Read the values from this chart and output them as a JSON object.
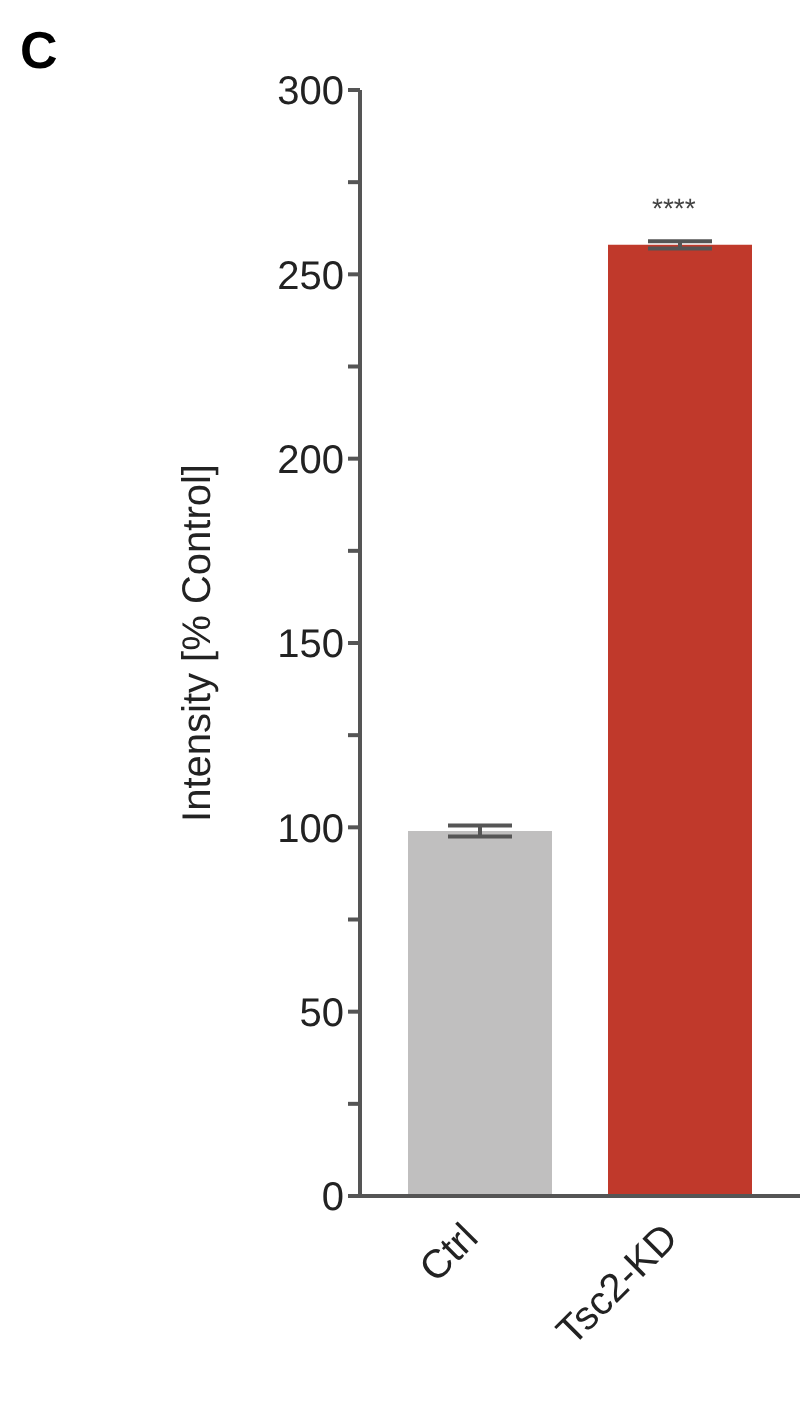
{
  "chart_data": {
    "type": "bar",
    "ylabel": "Intensity [% Control]",
    "categories": [
      "Ctrl",
      "Tsc2-KD"
    ],
    "values": [
      99,
      258
    ],
    "errors": [
      1.5,
      1
    ],
    "colors": [
      "#c0bfbf",
      "#c0392b"
    ],
    "ylim": [
      0,
      300
    ],
    "yticks": [
      0,
      {
        "value": 25,
        "label": null
      },
      50,
      {
        "value": 75,
        "label": null
      },
      100,
      {
        "value": 125,
        "label": null
      },
      150,
      {
        "value": 175,
        "label": null
      },
      200,
      {
        "value": 225,
        "label": null
      },
      250,
      {
        "value": 275,
        "label": null
      },
      300
    ],
    "annotations": [
      "C",
      "****"
    ]
  }
}
